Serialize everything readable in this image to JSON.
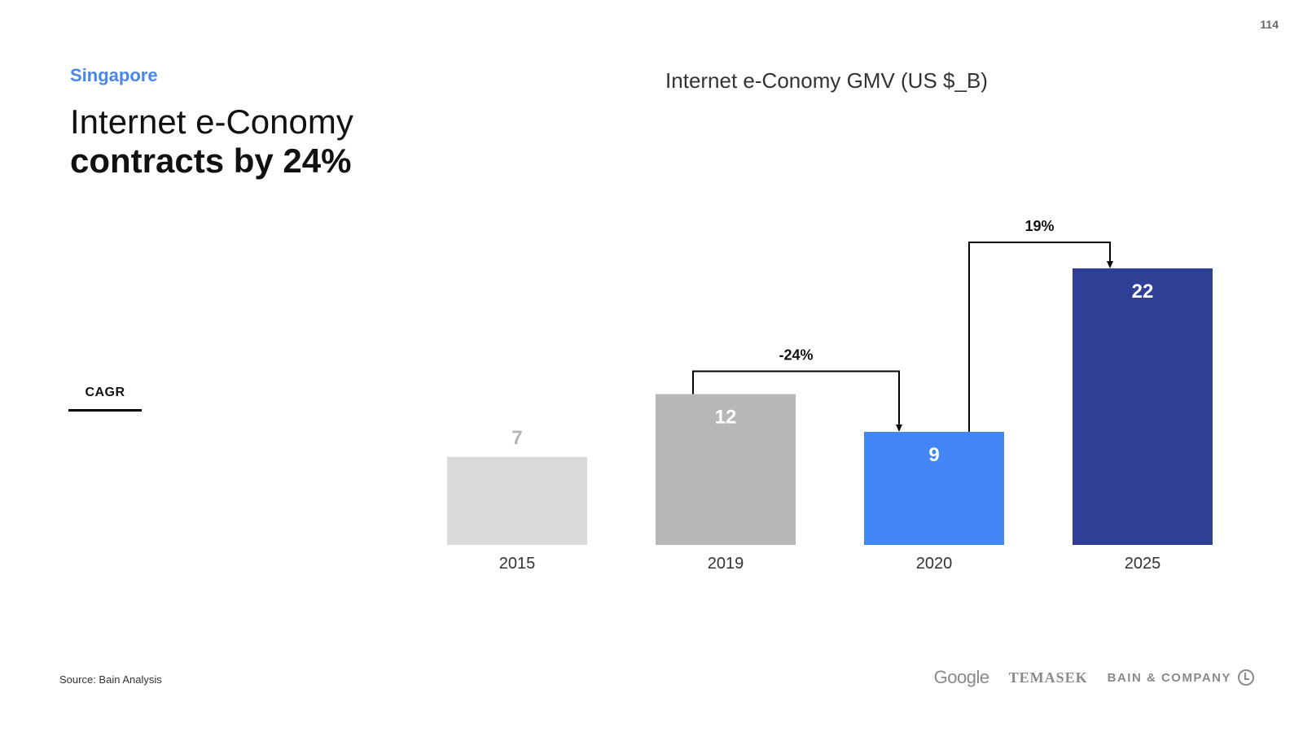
{
  "page_number": "114",
  "region": "Singapore",
  "headline": {
    "line1": "Internet e-Conomy",
    "line2": "contracts by 24%"
  },
  "cagr_label": "CAGR",
  "chart_data": {
    "type": "bar",
    "title": "Internet e-Conomy GMV (US $_B)",
    "categories": [
      "2015",
      "2019",
      "2020",
      "2025"
    ],
    "values": [
      7,
      12,
      9,
      22
    ],
    "colors": [
      "#d9d9d9",
      "#b7b7b7",
      "#4285f4",
      "#303f96"
    ],
    "label_colors": [
      "#b3b3b3",
      "#ffffff",
      "#ffffff",
      "#ffffff"
    ],
    "annotations": [
      {
        "label": "-24%",
        "from": "2019",
        "to": "2020"
      },
      {
        "label": "19%",
        "from": "2020",
        "to": "2025"
      }
    ],
    "xlabel": "",
    "ylabel": "",
    "grid": false
  },
  "source": "Source: Bain Analysis",
  "logos": {
    "google": "Google",
    "temasek": "TEMASEK",
    "bain": "BAIN & COMPANY"
  }
}
